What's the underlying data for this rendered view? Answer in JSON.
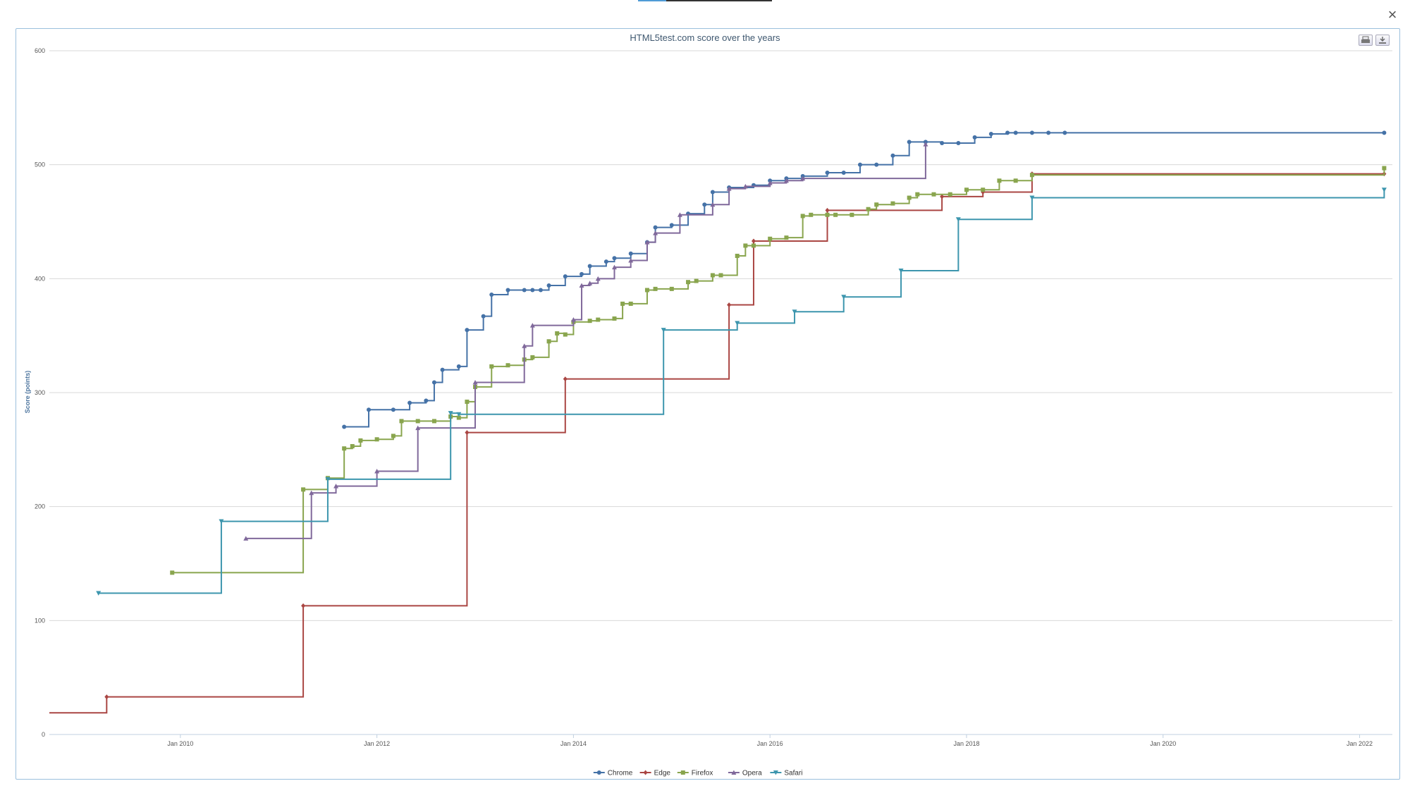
{
  "window": {
    "close_glyph": "×"
  },
  "toolbar": {
    "print_icon": "print-icon",
    "download_icon": "download-icon"
  },
  "colors": {
    "Chrome": "#4572a7",
    "Edge": "#aa4643",
    "Firefox": "#89a54e",
    "Opera": "#80699b",
    "Safari": "#3d96ae"
  },
  "chart_data": {
    "type": "line",
    "step": true,
    "title": "HTML5test.com score over the years",
    "xlabel": "",
    "ylabel": "Score (points)",
    "x_ticks": [
      "Jan 2010",
      "Jan 2012",
      "Jan 2014",
      "Jan 2016",
      "Jan 2018",
      "Jan 2020",
      "Jan 2022"
    ],
    "y_ticks": [
      "0",
      "100",
      "200",
      "300",
      "400",
      "500",
      "600"
    ],
    "xlim": [
      "2008-09",
      "2022-05"
    ],
    "ylim": [
      0,
      600
    ],
    "grid": true,
    "legend_position": "bottom-center",
    "series": [
      {
        "name": "Chrome",
        "marker": "circle",
        "points": [
          [
            "2011-09",
            270
          ],
          [
            "2011-12",
            285
          ],
          [
            "2012-03",
            285
          ],
          [
            "2012-05",
            291
          ],
          [
            "2012-07",
            293
          ],
          [
            "2012-08",
            309
          ],
          [
            "2012-09",
            320
          ],
          [
            "2012-11",
            323
          ],
          [
            "2012-12",
            355
          ],
          [
            "2013-02",
            367
          ],
          [
            "2013-03",
            386
          ],
          [
            "2013-05",
            390
          ],
          [
            "2013-07",
            390
          ],
          [
            "2013-08",
            390
          ],
          [
            "2013-09",
            390
          ],
          [
            "2013-10",
            394
          ],
          [
            "2013-12",
            402
          ],
          [
            "2014-02",
            404
          ],
          [
            "2014-03",
            411
          ],
          [
            "2014-05",
            415
          ],
          [
            "2014-06",
            418
          ],
          [
            "2014-08",
            422
          ],
          [
            "2014-10",
            432
          ],
          [
            "2014-11",
            445
          ],
          [
            "2015-01",
            447
          ],
          [
            "2015-03",
            457
          ],
          [
            "2015-05",
            465
          ],
          [
            "2015-06",
            476
          ],
          [
            "2015-08",
            480
          ],
          [
            "2015-11",
            482
          ],
          [
            "2016-01",
            486
          ],
          [
            "2016-03",
            488
          ],
          [
            "2016-05",
            490
          ],
          [
            "2016-08",
            493
          ],
          [
            "2016-10",
            493
          ],
          [
            "2016-12",
            500
          ],
          [
            "2017-02",
            500
          ],
          [
            "2017-04",
            508
          ],
          [
            "2017-06",
            520
          ],
          [
            "2017-08",
            520
          ],
          [
            "2017-10",
            519
          ],
          [
            "2017-12",
            519
          ],
          [
            "2018-02",
            524
          ],
          [
            "2018-04",
            527
          ],
          [
            "2018-06",
            528
          ],
          [
            "2018-07",
            528
          ],
          [
            "2018-09",
            528
          ],
          [
            "2018-11",
            528
          ],
          [
            "2019-01",
            528
          ],
          [
            "2022-04",
            528
          ]
        ]
      },
      {
        "name": "Edge",
        "marker": "diamond",
        "points": [
          [
            "2008-09",
            19
          ],
          [
            "2009-04",
            33
          ],
          [
            "2011-04",
            113
          ],
          [
            "2012-12",
            265
          ],
          [
            "2013-12",
            312
          ],
          [
            "2015-08",
            377
          ],
          [
            "2015-11",
            433
          ],
          [
            "2016-08",
            460
          ],
          [
            "2017-10",
            472
          ],
          [
            "2018-03",
            476
          ],
          [
            "2018-09",
            492
          ],
          [
            "2022-04",
            492
          ]
        ]
      },
      {
        "name": "Firefox",
        "marker": "square",
        "points": [
          [
            "2009-12",
            142
          ],
          [
            "2011-04",
            215
          ],
          [
            "2011-07",
            225
          ],
          [
            "2011-09",
            251
          ],
          [
            "2011-10",
            253
          ],
          [
            "2011-11",
            258
          ],
          [
            "2012-01",
            259
          ],
          [
            "2012-03",
            262
          ],
          [
            "2012-04",
            275
          ],
          [
            "2012-06",
            275
          ],
          [
            "2012-08",
            275
          ],
          [
            "2012-10",
            279
          ],
          [
            "2012-11",
            278
          ],
          [
            "2012-12",
            292
          ],
          [
            "2013-01",
            305
          ],
          [
            "2013-03",
            323
          ],
          [
            "2013-05",
            324
          ],
          [
            "2013-07",
            329
          ],
          [
            "2013-08",
            331
          ],
          [
            "2013-10",
            345
          ],
          [
            "2013-11",
            352
          ],
          [
            "2013-12",
            351
          ],
          [
            "2014-01",
            362
          ],
          [
            "2014-03",
            363
          ],
          [
            "2014-04",
            364
          ],
          [
            "2014-06",
            365
          ],
          [
            "2014-07",
            378
          ],
          [
            "2014-08",
            378
          ],
          [
            "2014-10",
            390
          ],
          [
            "2014-11",
            391
          ],
          [
            "2015-01",
            391
          ],
          [
            "2015-03",
            397
          ],
          [
            "2015-04",
            398
          ],
          [
            "2015-06",
            403
          ],
          [
            "2015-07",
            403
          ],
          [
            "2015-09",
            420
          ],
          [
            "2015-10",
            429
          ],
          [
            "2015-11",
            429
          ],
          [
            "2016-01",
            435
          ],
          [
            "2016-03",
            436
          ],
          [
            "2016-05",
            455
          ],
          [
            "2016-06",
            456
          ],
          [
            "2016-08",
            456
          ],
          [
            "2016-09",
            456
          ],
          [
            "2016-11",
            456
          ],
          [
            "2017-01",
            461
          ],
          [
            "2017-02",
            465
          ],
          [
            "2017-04",
            466
          ],
          [
            "2017-06",
            471
          ],
          [
            "2017-07",
            474
          ],
          [
            "2017-09",
            474
          ],
          [
            "2017-11",
            474
          ],
          [
            "2018-01",
            478
          ],
          [
            "2018-03",
            478
          ],
          [
            "2018-05",
            486
          ],
          [
            "2018-07",
            486
          ],
          [
            "2018-09",
            491
          ],
          [
            "2022-04",
            497
          ]
        ]
      },
      {
        "name": "Opera",
        "marker": "triangle",
        "points": [
          [
            "2010-09",
            172
          ],
          [
            "2011-05",
            212
          ],
          [
            "2011-08",
            218
          ],
          [
            "2012-01",
            231
          ],
          [
            "2012-06",
            269
          ],
          [
            "2013-01",
            309
          ],
          [
            "2013-07",
            341
          ],
          [
            "2013-08",
            359
          ],
          [
            "2014-01",
            364
          ],
          [
            "2014-02",
            394
          ],
          [
            "2014-03",
            396
          ],
          [
            "2014-04",
            400
          ],
          [
            "2014-06",
            410
          ],
          [
            "2014-08",
            416
          ],
          [
            "2014-10",
            432
          ],
          [
            "2014-11",
            440
          ],
          [
            "2015-02",
            456
          ],
          [
            "2015-06",
            465
          ],
          [
            "2015-08",
            479
          ],
          [
            "2015-10",
            481
          ],
          [
            "2016-01",
            484
          ],
          [
            "2016-03",
            486
          ],
          [
            "2016-05",
            488
          ],
          [
            "2017-08",
            518
          ]
        ]
      },
      {
        "name": "Safari",
        "marker": "triangle-down",
        "points": [
          [
            "2009-03",
            124
          ],
          [
            "2010-06",
            187
          ],
          [
            "2011-07",
            224
          ],
          [
            "2012-10",
            282
          ],
          [
            "2012-11",
            281
          ],
          [
            "2014-12",
            355
          ],
          [
            "2015-09",
            361
          ],
          [
            "2016-04",
            371
          ],
          [
            "2016-10",
            384
          ],
          [
            "2017-05",
            407
          ],
          [
            "2017-12",
            452
          ],
          [
            "2018-09",
            471
          ],
          [
            "2022-04",
            478
          ]
        ]
      }
    ]
  }
}
